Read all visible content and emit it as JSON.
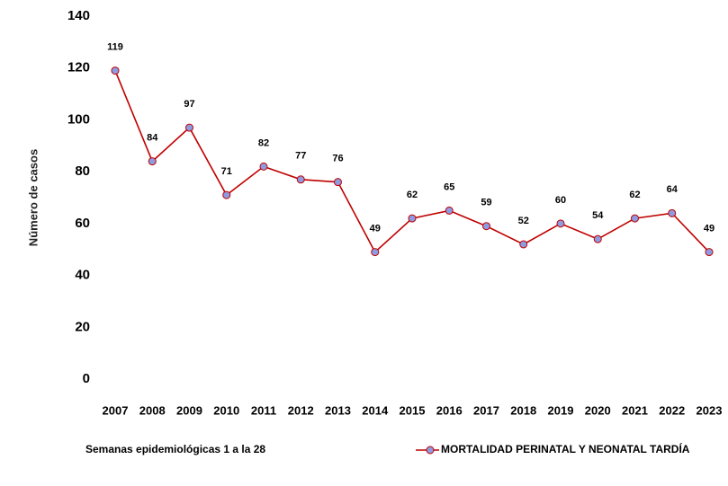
{
  "chart_data": {
    "type": "line",
    "y_label": "Número de casos",
    "note": "Semanas epidemiológicas 1 a la 28",
    "categories": [
      "2007",
      "2008",
      "2009",
      "2010",
      "2011",
      "2012",
      "2013",
      "2014",
      "2015",
      "2016",
      "2017",
      "2018",
      "2019",
      "2020",
      "2021",
      "2022",
      "2023"
    ],
    "series": [
      {
        "name": "MORTALIDAD PERINATAL Y NEONATAL TARDÍA",
        "color": "#c00000",
        "marker_color": "#8e9be0",
        "values": [
          119,
          84,
          97,
          71,
          82,
          77,
          76,
          49,
          62,
          65,
          59,
          52,
          60,
          54,
          62,
          64,
          49
        ]
      }
    ],
    "ylim": [
      0,
      140
    ],
    "yticks": [
      0,
      20,
      40,
      60,
      80,
      100,
      120,
      140
    ],
    "grid": false,
    "legend": "bottom"
  }
}
